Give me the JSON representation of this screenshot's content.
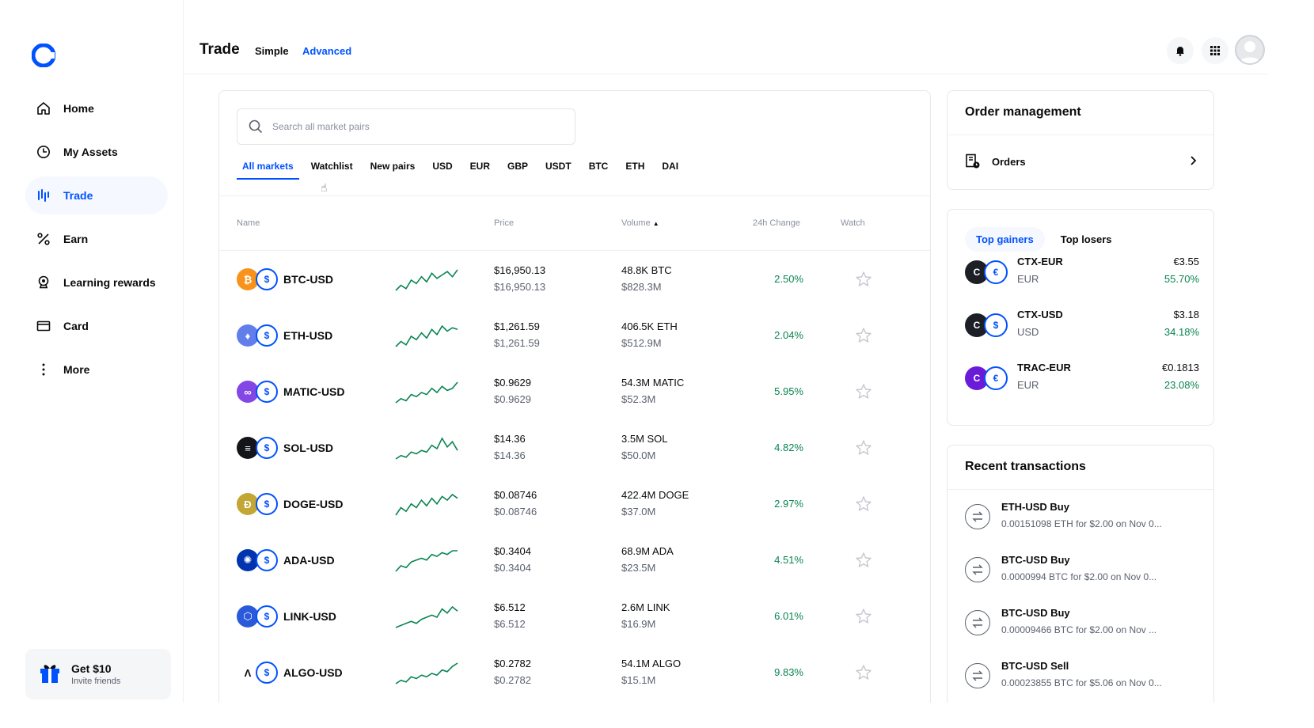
{
  "colors": {
    "accent": "#0052ff",
    "positive": "#098551",
    "text": "#0a0b0d",
    "muted": "#5b616e"
  },
  "sidebar": {
    "logo_icon": "coinbase-logo",
    "items": [
      {
        "label": "Home",
        "icon": "home-icon"
      },
      {
        "label": "My Assets",
        "icon": "clock-icon"
      },
      {
        "label": "Trade",
        "icon": "trade-chart-icon",
        "active": true
      },
      {
        "label": "Earn",
        "icon": "percent-icon"
      },
      {
        "label": "Learning rewards",
        "icon": "rewards-icon"
      },
      {
        "label": "Card",
        "icon": "card-icon"
      },
      {
        "label": "More",
        "icon": "more-vertical-icon"
      }
    ],
    "promo": {
      "title": "Get $10",
      "subtitle": "Invite friends",
      "icon": "gift-icon"
    }
  },
  "header": {
    "title": "Trade",
    "mode_simple": "Simple",
    "mode_advanced": "Advanced",
    "active_mode": "Advanced"
  },
  "markets": {
    "search_placeholder": "Search all market pairs",
    "tabs": [
      "All markets",
      "Watchlist",
      "New pairs",
      "USD",
      "EUR",
      "GBP",
      "USDT",
      "BTC",
      "ETH",
      "DAI"
    ],
    "active_tab": "All markets",
    "columns": {
      "name": "Name",
      "price": "Price",
      "volume": "Volume",
      "change": "24h Change",
      "watch": "Watch"
    },
    "volume_sort": "ascending",
    "rows": [
      {
        "pair": "BTC-USD",
        "base_glyph": "₿",
        "base_color": "#f7931a",
        "price": "$16,950.13",
        "price_sub": "$16,950.13",
        "volume": "48.8K BTC",
        "volume_sub": "$828.3M",
        "change": "2.50%",
        "spark": [
          4,
          7,
          5,
          10,
          8,
          12,
          9,
          14,
          11,
          13,
          15,
          12,
          16
        ]
      },
      {
        "pair": "ETH-USD",
        "base_glyph": "♦",
        "base_color": "#627eea",
        "price": "$1,261.59",
        "price_sub": "$1,261.59",
        "volume": "406.5K ETH",
        "volume_sub": "$512.9M",
        "change": "2.04%",
        "spark": [
          3,
          6,
          4,
          9,
          7,
          11,
          8,
          13,
          10,
          15,
          12,
          14,
          13
        ]
      },
      {
        "pair": "MATIC-USD",
        "base_glyph": "∞",
        "base_color": "#8247e5",
        "price": "$0.9629",
        "price_sub": "$0.9629",
        "volume": "54.3M MATIC",
        "volume_sub": "$52.3M",
        "change": "5.95%",
        "spark": [
          5,
          7,
          6,
          9,
          8,
          10,
          9,
          12,
          10,
          13,
          11,
          12,
          15
        ]
      },
      {
        "pair": "SOL-USD",
        "base_glyph": "≡",
        "base_color": "#14151a",
        "price": "$14.36",
        "price_sub": "$14.36",
        "volume": "3.5M SOL",
        "volume_sub": "$50.0M",
        "change": "4.82%",
        "spark": [
          4,
          6,
          5,
          8,
          7,
          9,
          8,
          12,
          10,
          16,
          11,
          14,
          9
        ]
      },
      {
        "pair": "DOGE-USD",
        "base_glyph": "Ð",
        "base_color": "#c3a634",
        "price": "$0.08746",
        "price_sub": "$0.08746",
        "volume": "422.4M DOGE",
        "volume_sub": "$37.0M",
        "change": "2.97%",
        "spark": [
          4,
          8,
          6,
          10,
          8,
          12,
          9,
          13,
          10,
          14,
          12,
          15,
          13
        ]
      },
      {
        "pair": "ADA-USD",
        "base_glyph": "✺",
        "base_color": "#0033ad",
        "price": "$0.3404",
        "price_sub": "$0.3404",
        "volume": "68.9M ADA",
        "volume_sub": "$23.5M",
        "change": "4.51%",
        "spark": [
          3,
          6,
          5,
          8,
          9,
          10,
          9,
          12,
          11,
          13,
          12,
          14,
          14
        ]
      },
      {
        "pair": "LINK-USD",
        "base_glyph": "⬡",
        "base_color": "#2a5ada",
        "price": "$6.512",
        "price_sub": "$6.512",
        "volume": "2.6M LINK",
        "volume_sub": "$16.9M",
        "change": "6.01%",
        "spark": [
          4,
          5,
          6,
          7,
          6,
          8,
          9,
          10,
          9,
          13,
          11,
          14,
          12
        ]
      },
      {
        "pair": "ALGO-USD",
        "base_glyph": "Λ",
        "base_color": "#ffffff",
        "price": "$0.2782",
        "price_sub": "$0.2782",
        "volume": "54.1M ALGO",
        "volume_sub": "$15.1M",
        "change": "9.83%",
        "spark": [
          3,
          5,
          4,
          7,
          6,
          8,
          7,
          9,
          8,
          11,
          10,
          13,
          15
        ]
      }
    ]
  },
  "order_management": {
    "title": "Order management",
    "orders_label": "Orders",
    "icon": "orders-icon"
  },
  "movers": {
    "tabs": [
      "Top gainers",
      "Top losers"
    ],
    "active_tab": "Top gainers",
    "rows": [
      {
        "pair": "CTX-EUR",
        "quote": "EUR",
        "quote_glyph": "€",
        "base_color": "#1c1f26",
        "price": "€3.55",
        "change": "55.70%"
      },
      {
        "pair": "CTX-USD",
        "quote": "USD",
        "quote_glyph": "$",
        "base_color": "#1c1f26",
        "price": "$3.18",
        "change": "34.18%"
      },
      {
        "pair": "TRAC-EUR",
        "quote": "EUR",
        "quote_glyph": "€",
        "base_color": "#6a1bd8",
        "price": "€0.1813",
        "change": "23.08%"
      }
    ]
  },
  "transactions": {
    "title": "Recent transactions",
    "items": [
      {
        "title": "ETH-USD Buy",
        "desc": "0.00151098 ETH for $2.00 on Nov 0..."
      },
      {
        "title": "BTC-USD Buy",
        "desc": "0.0000994 BTC for $2.00 on Nov 0..."
      },
      {
        "title": "BTC-USD Buy",
        "desc": "0.00009466 BTC for $2.00 on Nov ..."
      },
      {
        "title": "BTC-USD Sell",
        "desc": "0.00023855 BTC for $5.06 on Nov 0..."
      }
    ]
  }
}
